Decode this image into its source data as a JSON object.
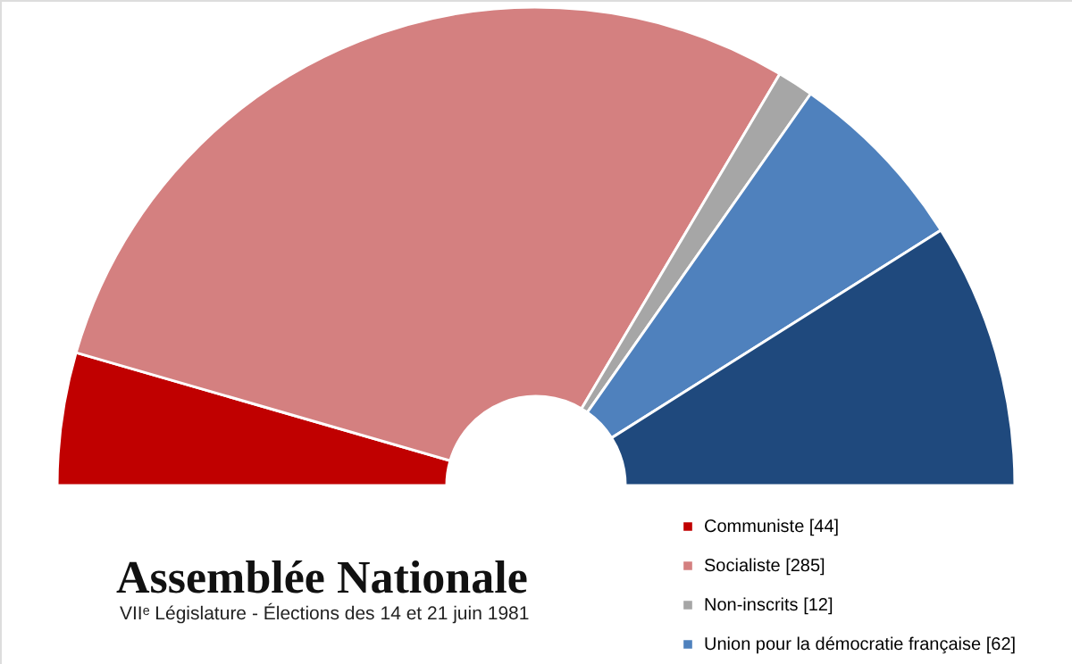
{
  "chart_data": {
    "type": "donut",
    "title": "Assemblée Nationale",
    "subtitle": "VIIᵉ Législature - Élections des 14 et 21 juin 1981",
    "categories": [
      "Communiste [44]",
      "Socialiste [285]",
      "Non-inscrits [12]",
      "Union pour la démocratie française [62]",
      null
    ],
    "values": [
      44,
      285,
      12,
      62,
      88
    ],
    "colors": [
      "#c00000",
      "#d48080",
      "#a6a6a6",
      "#4f81bd",
      "#1f497d"
    ],
    "legend": "bottom right"
  }
}
